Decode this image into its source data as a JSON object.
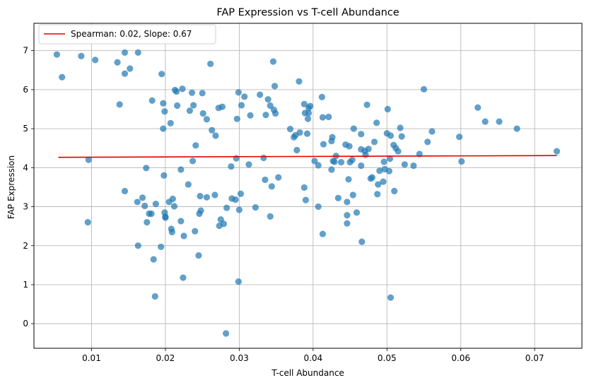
{
  "chart_data": {
    "type": "scatter",
    "title": "FAP Expression vs T-cell Abundance",
    "xlabel": "T-cell Abundance",
    "ylabel": "FAP Expression",
    "xlim": [
      0.0022,
      0.0764
    ],
    "ylim": [
      -0.63,
      7.7
    ],
    "xticks": [
      0.01,
      0.02,
      0.03,
      0.04,
      0.05,
      0.06,
      0.07
    ],
    "yticks": [
      0,
      1,
      2,
      3,
      4,
      5,
      6,
      7
    ],
    "grid": true,
    "legend_position": "top-left",
    "point_color": "#1f77b4",
    "line_color": "#e00000",
    "legend": {
      "label": "Spearman: 0.02, Slope: 0.67"
    },
    "fit_line": {
      "x": [
        0.0055,
        0.073
      ],
      "y": [
        4.265,
        4.31
      ]
    },
    "points": [
      [
        0.0053,
        6.9
      ],
      [
        0.006,
        6.32
      ],
      [
        0.0086,
        6.86
      ],
      [
        0.0105,
        6.76
      ],
      [
        0.0135,
        6.7
      ],
      [
        0.0145,
        6.95
      ],
      [
        0.0145,
        6.41
      ],
      [
        0.0152,
        6.54
      ],
      [
        0.0163,
        6.95
      ],
      [
        0.0138,
        5.62
      ],
      [
        0.0096,
        4.2
      ],
      [
        0.0095,
        2.6
      ],
      [
        0.0145,
        3.4
      ],
      [
        0.0162,
        3.12
      ],
      [
        0.0169,
        3.23
      ],
      [
        0.0172,
        3.02
      ],
      [
        0.0175,
        2.6
      ],
      [
        0.0178,
        2.82
      ],
      [
        0.0181,
        2.82
      ],
      [
        0.0163,
        2.0
      ],
      [
        0.0182,
        5.72
      ],
      [
        0.0184,
        1.65
      ],
      [
        0.0186,
        0.7
      ],
      [
        0.0187,
        3.07
      ],
      [
        0.0174,
        3.99
      ],
      [
        0.0194,
        1.97
      ],
      [
        0.0195,
        6.4
      ],
      [
        0.0197,
        5.65
      ],
      [
        0.0197,
        5.0
      ],
      [
        0.0199,
        5.44
      ],
      [
        0.0198,
        3.8
      ],
      [
        0.0199,
        2.85
      ],
      [
        0.02,
        2.72
      ],
      [
        0.02,
        2.74
      ],
      [
        0.0205,
        3.12
      ],
      [
        0.0207,
        5.14
      ],
      [
        0.0209,
        2.35
      ],
      [
        0.0208,
        2.43
      ],
      [
        0.021,
        3.2
      ],
      [
        0.0212,
        3.01
      ],
      [
        0.0213,
        5.99
      ],
      [
        0.0215,
        5.95
      ],
      [
        0.0216,
        5.59
      ],
      [
        0.0221,
        2.63
      ],
      [
        0.0221,
        3.95
      ],
      [
        0.0223,
        6.02
      ],
      [
        0.0225,
        2.25
      ],
      [
        0.0224,
        1.18
      ],
      [
        0.0231,
        3.57
      ],
      [
        0.0233,
        5.46
      ],
      [
        0.0236,
        5.92
      ],
      [
        0.0237,
        4.17
      ],
      [
        0.0238,
        5.6
      ],
      [
        0.024,
        2.37
      ],
      [
        0.0241,
        4.57
      ],
      [
        0.0245,
        1.75
      ],
      [
        0.0246,
        2.82
      ],
      [
        0.0247,
        3.27
      ],
      [
        0.0248,
        2.9
      ],
      [
        0.025,
        5.91
      ],
      [
        0.0251,
        5.39
      ],
      [
        0.0256,
        3.24
      ],
      [
        0.0256,
        5.24
      ],
      [
        0.0261,
        6.66
      ],
      [
        0.0263,
        4.96
      ],
      [
        0.0267,
        3.3
      ],
      [
        0.0268,
        4.82
      ],
      [
        0.0272,
        5.53
      ],
      [
        0.0273,
        2.51
      ],
      [
        0.0275,
        2.67
      ],
      [
        0.0277,
        5.56
      ],
      [
        0.0279,
        2.56
      ],
      [
        0.0282,
        -0.25
      ],
      [
        0.0283,
        2.97
      ],
      [
        0.0289,
        4.03
      ],
      [
        0.029,
        3.21
      ],
      [
        0.0295,
        3.18
      ],
      [
        0.0296,
        4.24
      ],
      [
        0.0297,
        5.25
      ],
      [
        0.0299,
        5.93
      ],
      [
        0.0299,
        1.08
      ],
      [
        0.03,
        2.92
      ],
      [
        0.0302,
        3.33
      ],
      [
        0.0303,
        5.6
      ],
      [
        0.0307,
        5.82
      ],
      [
        0.0313,
        4.08
      ],
      [
        0.0315,
        5.34
      ],
      [
        0.0322,
        2.98
      ],
      [
        0.0328,
        5.87
      ],
      [
        0.0333,
        4.25
      ],
      [
        0.0335,
        3.69
      ],
      [
        0.0336,
        5.35
      ],
      [
        0.0339,
        5.75
      ],
      [
        0.0342,
        2.75
      ],
      [
        0.0342,
        5.59
      ],
      [
        0.0344,
        3.52
      ],
      [
        0.0346,
        6.72
      ],
      [
        0.0347,
        5.48
      ],
      [
        0.0348,
        6.09
      ],
      [
        0.0349,
        5.39
      ],
      [
        0.0353,
        3.75
      ],
      [
        0.0369,
        4.99
      ],
      [
        0.0374,
        4.78
      ],
      [
        0.0376,
        4.83
      ],
      [
        0.0378,
        4.45
      ],
      [
        0.0381,
        6.21
      ],
      [
        0.0382,
        4.9
      ],
      [
        0.0388,
        3.49
      ],
      [
        0.0388,
        5.63
      ],
      [
        0.0389,
        5.4
      ],
      [
        0.039,
        3.17
      ],
      [
        0.0392,
        4.87
      ],
      [
        0.0393,
        5.25
      ],
      [
        0.0394,
        5.53
      ],
      [
        0.0394,
        5.4
      ],
      [
        0.0396,
        5.58
      ],
      [
        0.0402,
        4.17
      ],
      [
        0.0407,
        4.06
      ],
      [
        0.0407,
        3.0
      ],
      [
        0.0412,
        5.81
      ],
      [
        0.0413,
        2.3
      ],
      [
        0.0413,
        5.29
      ],
      [
        0.0414,
        4.6
      ],
      [
        0.0421,
        5.3
      ],
      [
        0.0425,
        3.95
      ],
      [
        0.0425,
        4.68
      ],
      [
        0.0426,
        4.78
      ],
      [
        0.0427,
        4.17
      ],
      [
        0.0429,
        4.15
      ],
      [
        0.0431,
        4.3
      ],
      [
        0.0434,
        3.22
      ],
      [
        0.0438,
        4.14
      ],
      [
        0.0444,
        4.59
      ],
      [
        0.0446,
        2.78
      ],
      [
        0.0446,
        3.12
      ],
      [
        0.0446,
        2.57
      ],
      [
        0.0449,
        4.55
      ],
      [
        0.0448,
        3.7
      ],
      [
        0.045,
        4.14
      ],
      [
        0.0453,
        4.2
      ],
      [
        0.0454,
        3.3
      ],
      [
        0.0455,
        5.0
      ],
      [
        0.0459,
        2.85
      ],
      [
        0.0465,
        4.47
      ],
      [
        0.0465,
        4.86
      ],
      [
        0.0465,
        4.05
      ],
      [
        0.0466,
        2.1
      ],
      [
        0.047,
        4.43
      ],
      [
        0.0471,
        4.33
      ],
      [
        0.0473,
        5.61
      ],
      [
        0.0475,
        4.48
      ],
      [
        0.0478,
        3.72
      ],
      [
        0.048,
        3.75
      ],
      [
        0.0483,
        4.66
      ],
      [
        0.0486,
        5.15
      ],
      [
        0.0487,
        3.32
      ],
      [
        0.0488,
        3.57
      ],
      [
        0.049,
        3.92
      ],
      [
        0.0495,
        3.64
      ],
      [
        0.0496,
        4.15
      ],
      [
        0.0497,
        3.96
      ],
      [
        0.05,
        4.88
      ],
      [
        0.0501,
        5.5
      ],
      [
        0.0503,
        3.91
      ],
      [
        0.0505,
        0.67
      ],
      [
        0.0504,
        4.23
      ],
      [
        0.0505,
        4.82
      ],
      [
        0.0509,
        4.58
      ],
      [
        0.051,
        3.4
      ],
      [
        0.0512,
        4.5
      ],
      [
        0.0515,
        4.42
      ],
      [
        0.0518,
        5.02
      ],
      [
        0.052,
        4.8
      ],
      [
        0.0524,
        4.08
      ],
      [
        0.0536,
        4.05
      ],
      [
        0.0544,
        4.35
      ],
      [
        0.055,
        6.01
      ],
      [
        0.0555,
        4.66
      ],
      [
        0.0561,
        4.93
      ],
      [
        0.0598,
        4.79
      ],
      [
        0.0601,
        4.16
      ],
      [
        0.0623,
        5.54
      ],
      [
        0.0633,
        5.18
      ],
      [
        0.0652,
        5.18
      ],
      [
        0.0676,
        5.0
      ],
      [
        0.073,
        4.42
      ]
    ]
  }
}
